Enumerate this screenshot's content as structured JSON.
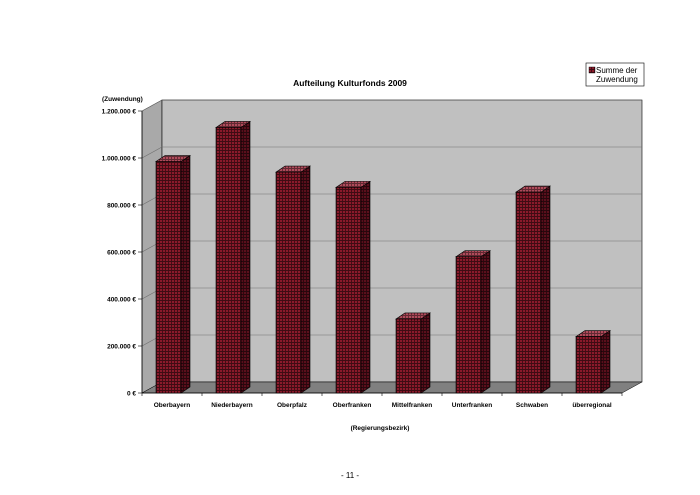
{
  "page": {
    "number_label": "- 11 -"
  },
  "chart_data": {
    "type": "bar",
    "title": "Aufteilung Kulturfonds 2009",
    "ylabel": "(Zuwendung)",
    "xlabel": "(Regierungsbezirk)",
    "ylim": [
      0,
      1200000
    ],
    "yticks": [
      {
        "value": 0,
        "label": "0 €"
      },
      {
        "value": 200000,
        "label": "200.000 €"
      },
      {
        "value": 400000,
        "label": "400.000 €"
      },
      {
        "value": 600000,
        "label": "600.000 €"
      },
      {
        "value": 800000,
        "label": "800.000 €"
      },
      {
        "value": 1000000,
        "label": "1.000.000 €"
      },
      {
        "value": 1200000,
        "label": "1.200.000 €"
      }
    ],
    "categories": [
      "Oberbayern",
      "Niederbayern",
      "Oberpfalz",
      "Oberfranken",
      "Mittelfranken",
      "Unterfranken",
      "Schwaben",
      "überregional"
    ],
    "series": [
      {
        "name": "Summe der Zuwendung",
        "legend_lines": [
          "Summe der",
          "Zuwendung"
        ],
        "color": "#8b1a2b",
        "values": [
          985000,
          1130000,
          940000,
          875000,
          315000,
          580000,
          855000,
          240000
        ]
      }
    ],
    "grid": true,
    "legend": "top-right",
    "colors": {
      "wall": "#c0c0c0",
      "floor": "#808080",
      "bar_front": "#8b1a2b",
      "bar_top": "#a84150",
      "bar_side": "#5a0f1c",
      "hatch": "#000000"
    }
  }
}
